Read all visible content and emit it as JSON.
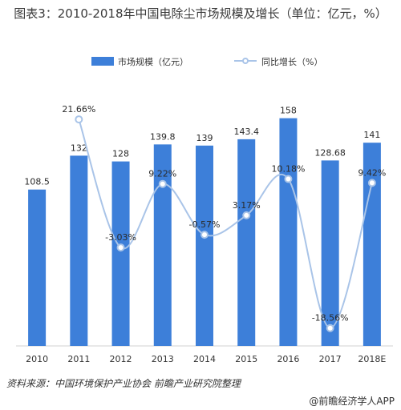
{
  "title": "图表3：2010-2018年中国电除尘市场规模及增长（单位：亿元，%）",
  "chart_data": {
    "type": "bar",
    "categories": [
      "2010",
      "2011",
      "2012",
      "2013",
      "2014",
      "2015",
      "2016",
      "2017",
      "2018E"
    ],
    "series": [
      {
        "name": "市场规模（亿元）",
        "type": "bar",
        "values": [
          108.5,
          132,
          128,
          139.8,
          139,
          143.4,
          158,
          128.68,
          141
        ],
        "labels": [
          "108.5",
          "132",
          "128",
          "139.8",
          "139",
          "143.4",
          "158",
          "128.68",
          "141"
        ],
        "color": "#3d7fd9"
      },
      {
        "name": "同比增长（%）",
        "type": "line",
        "values": [
          null,
          21.66,
          -3.03,
          9.22,
          -0.57,
          3.17,
          10.18,
          -18.56,
          9.42
        ],
        "labels": [
          "",
          "21.66%",
          "-3.03%",
          "9.22%",
          "-0.57%",
          "3.17%",
          "10.18%",
          "-18.56%",
          "9.42%"
        ],
        "color": "#a9c4e8"
      }
    ],
    "bar_ylim": [
      0,
      180
    ],
    "line_ylim": [
      -22,
      28
    ],
    "legend": "top"
  },
  "source": "资料来源：中国环境保护产业协会 前瞻产业研究院整理",
  "brand": "@前瞻经济学人APP"
}
